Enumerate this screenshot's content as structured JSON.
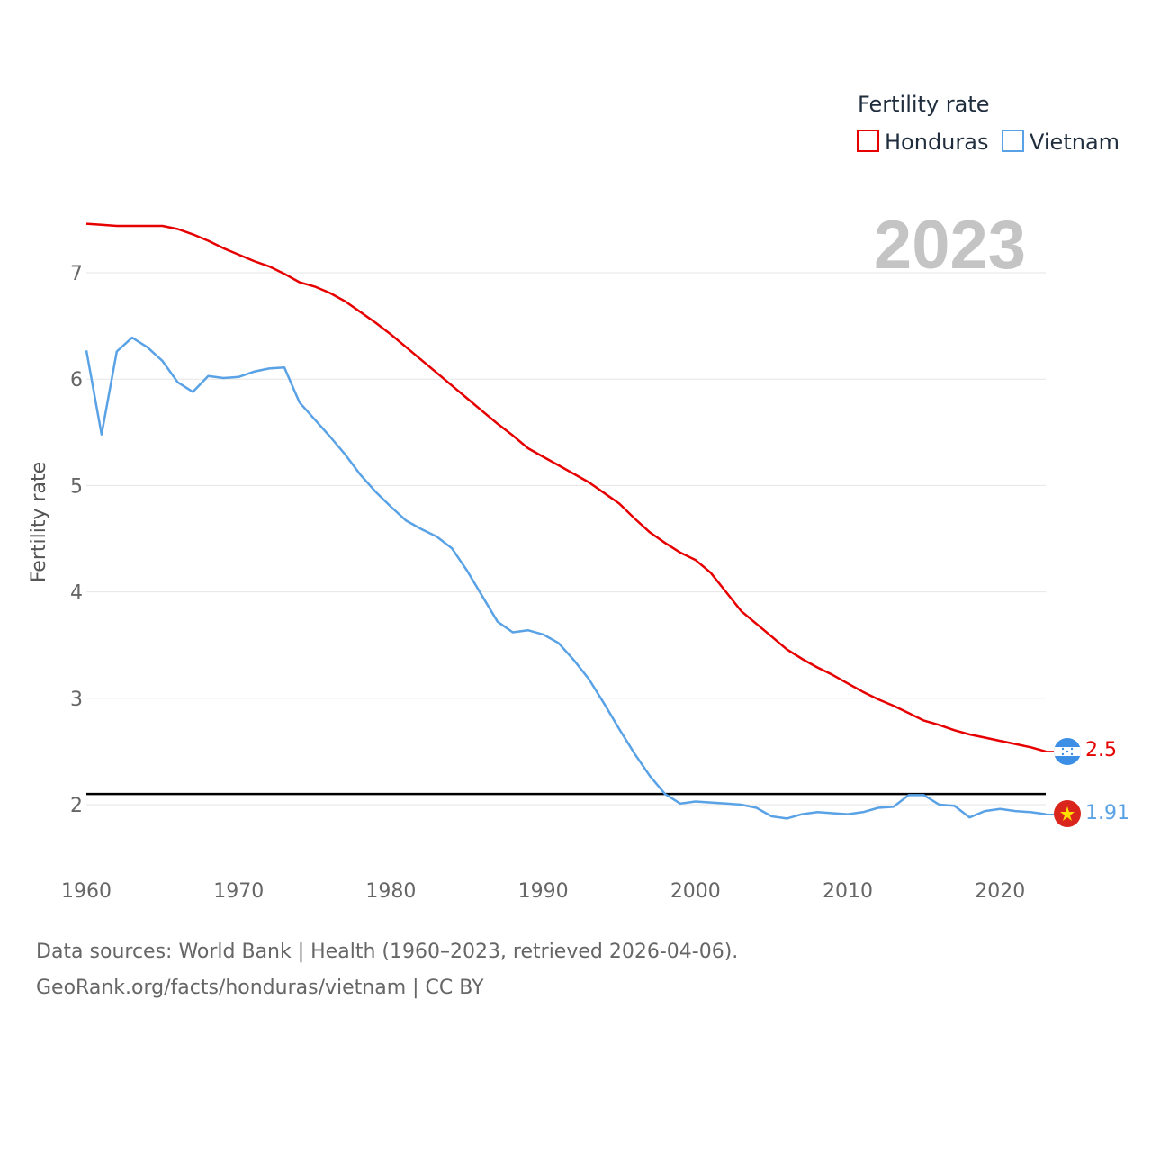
{
  "chart_data": {
    "type": "line",
    "legend_title": "Fertility rate",
    "ylabel": "Fertility rate",
    "xlabel": "",
    "year_label": "2023",
    "xlim": [
      1960,
      2023
    ],
    "ylim": [
      1.45,
      7.5
    ],
    "y_ticks": [
      2,
      3,
      4,
      5,
      6,
      7
    ],
    "x_ticks": [
      1960,
      1970,
      1980,
      1990,
      2000,
      2010,
      2020
    ],
    "reference_line": 2.1,
    "legend_position": "top-right",
    "x": [
      1960,
      1961,
      1962,
      1963,
      1964,
      1965,
      1966,
      1967,
      1968,
      1969,
      1970,
      1971,
      1972,
      1973,
      1974,
      1975,
      1976,
      1977,
      1978,
      1979,
      1980,
      1981,
      1982,
      1983,
      1984,
      1985,
      1986,
      1987,
      1988,
      1989,
      1990,
      1991,
      1992,
      1993,
      1994,
      1995,
      1996,
      1997,
      1998,
      1999,
      2000,
      2001,
      2002,
      2003,
      2004,
      2005,
      2006,
      2007,
      2008,
      2009,
      2010,
      2011,
      2012,
      2013,
      2014,
      2015,
      2016,
      2017,
      2018,
      2019,
      2020,
      2021,
      2022,
      2023
    ],
    "series": [
      {
        "name": "Honduras",
        "color": "#e60000",
        "end_label": "2.5",
        "flag": "honduras-flag",
        "values": [
          7.46,
          7.45,
          7.44,
          7.44,
          7.44,
          7.44,
          7.41,
          7.36,
          7.3,
          7.23,
          7.17,
          7.11,
          7.06,
          6.99,
          6.91,
          6.87,
          6.81,
          6.73,
          6.63,
          6.53,
          6.42,
          6.3,
          6.18,
          6.06,
          5.94,
          5.82,
          5.7,
          5.58,
          5.47,
          5.35,
          5.27,
          5.19,
          5.11,
          5.03,
          4.93,
          4.83,
          4.69,
          4.56,
          4.46,
          4.37,
          4.3,
          4.18,
          4.0,
          3.82,
          3.7,
          3.58,
          3.46,
          3.37,
          3.29,
          3.22,
          3.14,
          3.06,
          2.99,
          2.93,
          2.86,
          2.79,
          2.75,
          2.7,
          2.66,
          2.63,
          2.6,
          2.57,
          2.54,
          2.5
        ]
      },
      {
        "name": "Vietnam",
        "color": "#5aa2e6",
        "end_label": "1.91",
        "flag": "vietnam-flag",
        "values": [
          6.27,
          5.48,
          6.26,
          6.39,
          6.3,
          6.17,
          5.97,
          5.88,
          6.03,
          6.01,
          6.02,
          6.07,
          6.1,
          6.11,
          5.78,
          5.62,
          5.46,
          5.29,
          5.1,
          4.94,
          4.8,
          4.67,
          4.59,
          4.52,
          4.41,
          4.2,
          3.96,
          3.72,
          3.62,
          3.64,
          3.6,
          3.52,
          3.36,
          3.18,
          2.95,
          2.71,
          2.48,
          2.27,
          2.1,
          2.01,
          2.03,
          2.02,
          2.01,
          2.0,
          1.97,
          1.89,
          1.87,
          1.91,
          1.93,
          1.92,
          1.91,
          1.93,
          1.97,
          1.98,
          2.09,
          2.09,
          2.0,
          1.99,
          1.88,
          1.94,
          1.96,
          1.94,
          1.93,
          1.91
        ]
      }
    ]
  },
  "source": {
    "line1": "Data sources: World Bank | Health (1960–2023, retrieved 2026-04-06).",
    "line2": "GeoRank.org/facts/honduras/vietnam | CC BY"
  }
}
